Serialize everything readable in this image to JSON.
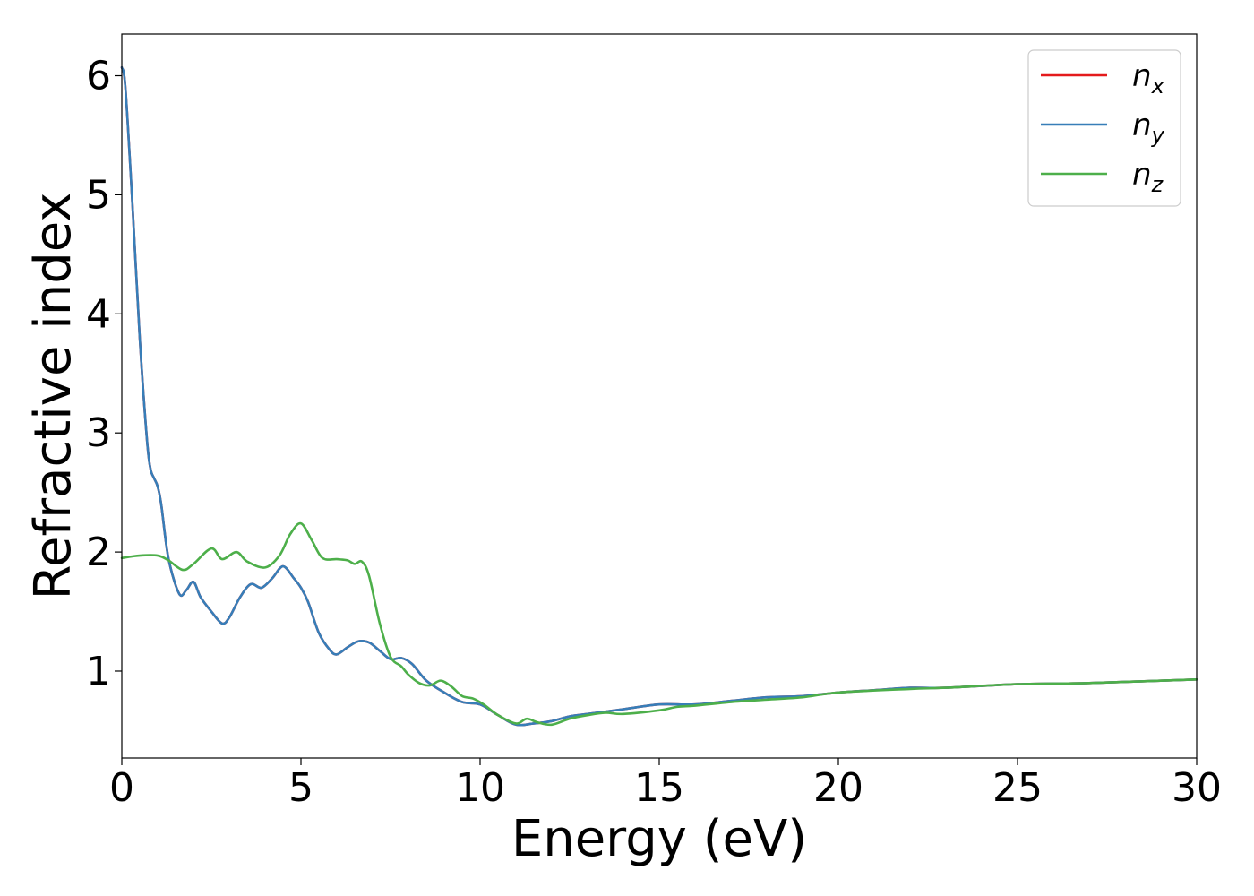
{
  "chart_data": {
    "type": "line",
    "title": "",
    "xlabel": "Energy (eV)",
    "ylabel": "Refractive index",
    "xlim": [
      0,
      30
    ],
    "ylim": [
      0.27,
      6.35
    ],
    "xticks": [
      0,
      5,
      10,
      15,
      20,
      25,
      30
    ],
    "yticks": [
      1,
      2,
      3,
      4,
      5,
      6
    ],
    "grid": false,
    "legend": {
      "position": "top-right"
    },
    "series": [
      {
        "name": "n",
        "subscript": "x",
        "color": "#e41a1c",
        "x": [
          0,
          0.1,
          0.3,
          0.5,
          0.7,
          0.8,
          0.9,
          1.0,
          1.1,
          1.3,
          1.6,
          1.8,
          2.0,
          2.2,
          2.5,
          2.8,
          3.0,
          3.3,
          3.6,
          3.9,
          4.2,
          4.5,
          4.8,
          5.0,
          5.2,
          5.5,
          5.8,
          6.0,
          6.3,
          6.6,
          6.9,
          7.2,
          7.5,
          7.8,
          8.1,
          8.5,
          9.0,
          9.5,
          10.0,
          10.5,
          11.0,
          11.5,
          12.0,
          12.5,
          13.0,
          14.0,
          15.0,
          16.0,
          17.0,
          18.0,
          19.0,
          20.0,
          21.0,
          22.0,
          23.0,
          25.0,
          27.0,
          30.0
        ],
        "y": [
          6.07,
          5.9,
          4.9,
          3.8,
          2.95,
          2.7,
          2.62,
          2.55,
          2.4,
          1.95,
          1.65,
          1.68,
          1.75,
          1.62,
          1.5,
          1.4,
          1.45,
          1.62,
          1.73,
          1.7,
          1.78,
          1.88,
          1.78,
          1.7,
          1.58,
          1.32,
          1.18,
          1.14,
          1.2,
          1.25,
          1.24,
          1.17,
          1.1,
          1.11,
          1.06,
          0.92,
          0.82,
          0.74,
          0.72,
          0.63,
          0.55,
          0.56,
          0.58,
          0.62,
          0.64,
          0.68,
          0.72,
          0.72,
          0.75,
          0.78,
          0.79,
          0.82,
          0.84,
          0.86,
          0.86,
          0.89,
          0.9,
          0.93
        ]
      },
      {
        "name": "n",
        "subscript": "y",
        "color": "#377eb8",
        "x": [
          0,
          0.1,
          0.3,
          0.5,
          0.7,
          0.8,
          0.9,
          1.0,
          1.1,
          1.3,
          1.6,
          1.8,
          2.0,
          2.2,
          2.5,
          2.8,
          3.0,
          3.3,
          3.6,
          3.9,
          4.2,
          4.5,
          4.8,
          5.0,
          5.2,
          5.5,
          5.8,
          6.0,
          6.3,
          6.6,
          6.9,
          7.2,
          7.5,
          7.8,
          8.1,
          8.5,
          9.0,
          9.5,
          10.0,
          10.5,
          11.0,
          11.5,
          12.0,
          12.5,
          13.0,
          14.0,
          15.0,
          16.0,
          17.0,
          18.0,
          19.0,
          20.0,
          21.0,
          22.0,
          23.0,
          25.0,
          27.0,
          30.0
        ],
        "y": [
          6.07,
          5.9,
          4.9,
          3.8,
          2.95,
          2.7,
          2.62,
          2.55,
          2.4,
          1.95,
          1.65,
          1.68,
          1.75,
          1.62,
          1.5,
          1.4,
          1.45,
          1.62,
          1.73,
          1.7,
          1.78,
          1.88,
          1.78,
          1.7,
          1.58,
          1.32,
          1.18,
          1.14,
          1.2,
          1.25,
          1.24,
          1.17,
          1.1,
          1.11,
          1.06,
          0.92,
          0.82,
          0.74,
          0.72,
          0.63,
          0.55,
          0.56,
          0.58,
          0.62,
          0.64,
          0.68,
          0.72,
          0.72,
          0.75,
          0.78,
          0.79,
          0.82,
          0.84,
          0.86,
          0.86,
          0.89,
          0.9,
          0.93
        ]
      },
      {
        "name": "n",
        "subscript": "z",
        "color": "#4daf4a",
        "x": [
          0,
          0.5,
          1.0,
          1.3,
          1.7,
          2.0,
          2.5,
          2.8,
          3.2,
          3.5,
          4.0,
          4.4,
          4.7,
          5.0,
          5.3,
          5.6,
          6.0,
          6.3,
          6.5,
          6.7,
          6.9,
          7.2,
          7.5,
          7.8,
          8.0,
          8.3,
          8.6,
          8.9,
          9.2,
          9.5,
          9.8,
          10.1,
          10.5,
          11.0,
          11.3,
          11.6,
          12.0,
          12.5,
          13.0,
          13.5,
          14.0,
          15.0,
          15.5,
          16.0,
          17.0,
          18.0,
          19.0,
          20.0,
          22.0,
          23.0,
          25.0,
          27.0,
          30.0
        ],
        "y": [
          1.95,
          1.97,
          1.97,
          1.93,
          1.85,
          1.9,
          2.03,
          1.94,
          2.0,
          1.92,
          1.87,
          1.97,
          2.15,
          2.24,
          2.1,
          1.95,
          1.94,
          1.93,
          1.9,
          1.92,
          1.8,
          1.4,
          1.12,
          1.04,
          0.97,
          0.9,
          0.88,
          0.92,
          0.87,
          0.79,
          0.77,
          0.72,
          0.63,
          0.56,
          0.6,
          0.57,
          0.55,
          0.6,
          0.63,
          0.65,
          0.64,
          0.67,
          0.7,
          0.71,
          0.74,
          0.76,
          0.78,
          0.82,
          0.85,
          0.86,
          0.89,
          0.9,
          0.93
        ]
      }
    ]
  }
}
